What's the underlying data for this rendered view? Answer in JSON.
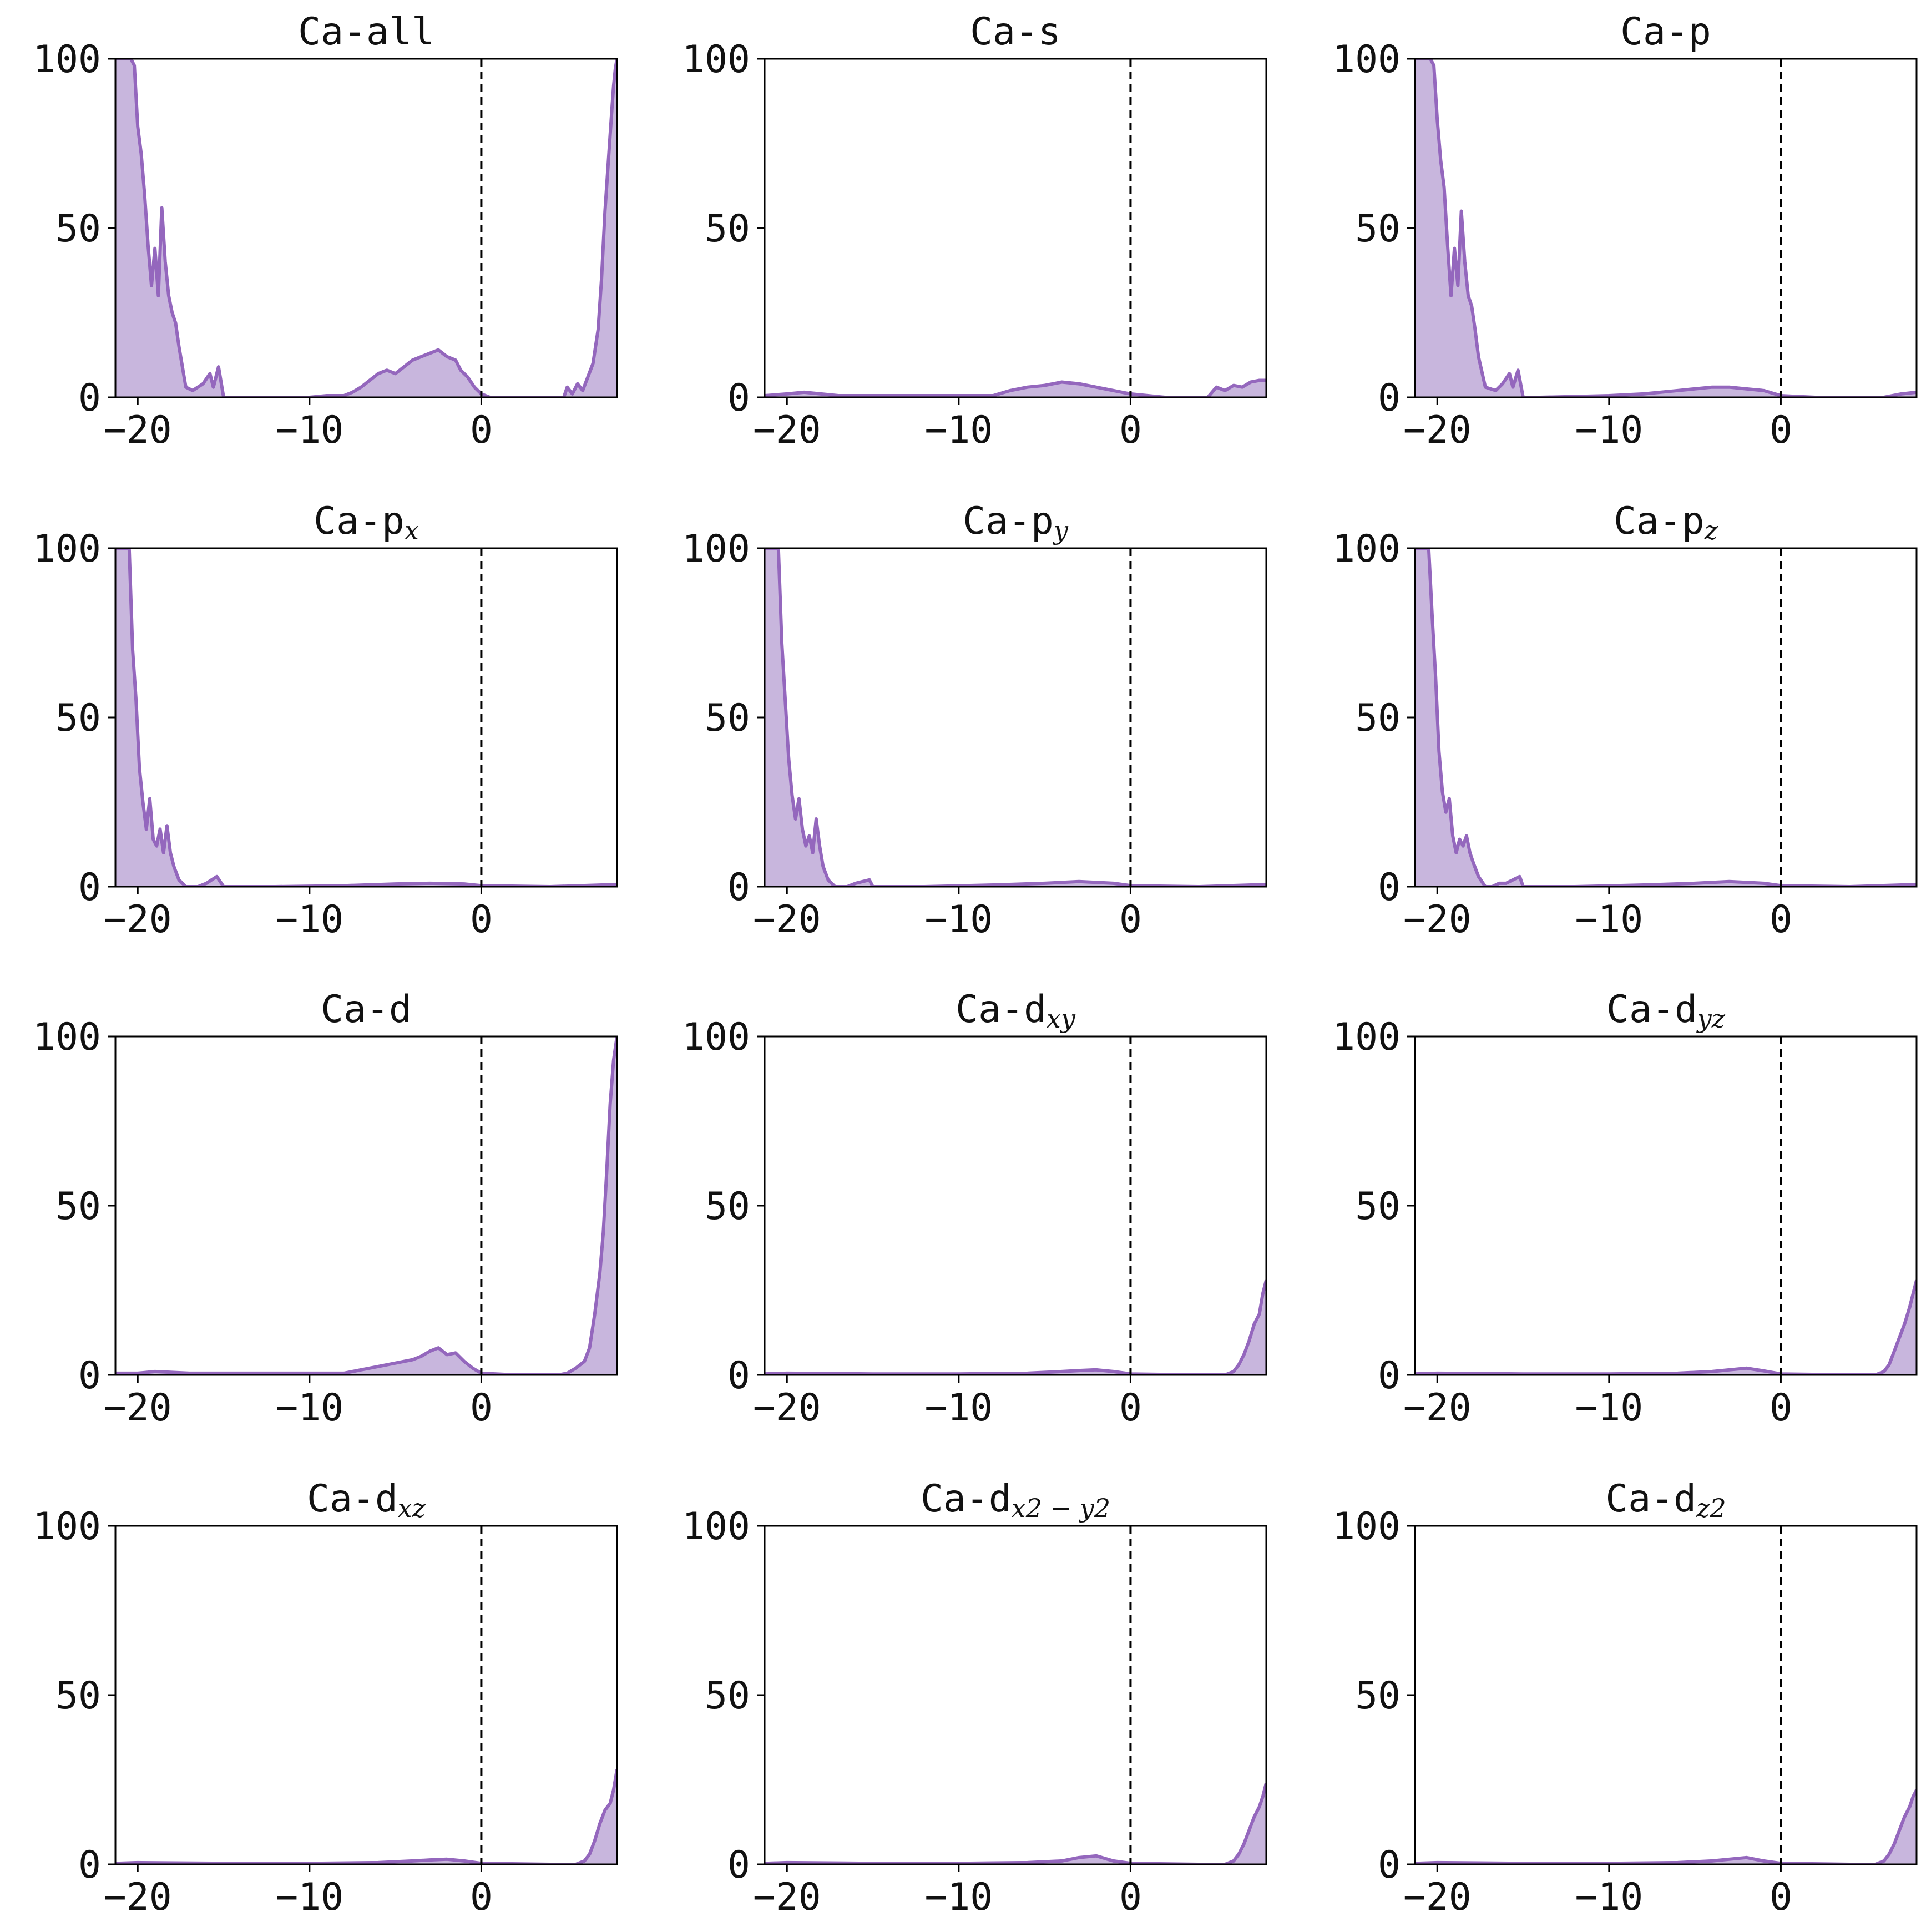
{
  "colors": {
    "line": "#9467bd",
    "fill": "#c8b6dd",
    "axis": "#000000",
    "fermi_line": "#000000"
  },
  "chart_data": [
    {
      "type": "area",
      "title": "Ca-all",
      "title_base": "Ca-all",
      "title_sub": "",
      "xlim": [
        -21.3,
        7.9
      ],
      "ylim": [
        0,
        100
      ],
      "xticks": [
        -20,
        -10,
        0
      ],
      "yticks": [
        0,
        50,
        100
      ],
      "vline": 0,
      "x": [
        -21.3,
        -20.8,
        -20.4,
        -20.2,
        -20.0,
        -19.8,
        -19.6,
        -19.4,
        -19.2,
        -19.0,
        -18.8,
        -18.6,
        -18.4,
        -18.2,
        -18.0,
        -17.8,
        -17.6,
        -17.2,
        -16.8,
        -16.2,
        -15.8,
        -15.6,
        -15.3,
        -15.0,
        -14.0,
        -10.0,
        -9.0,
        -8.0,
        -7.5,
        -7.0,
        -6.5,
        -6.0,
        -5.5,
        -5.0,
        -4.5,
        -4.0,
        -3.5,
        -3.0,
        -2.5,
        -2.0,
        -1.5,
        -1.2,
        -0.8,
        -0.4,
        0.0,
        0.5,
        2.0,
        4.0,
        4.8,
        5.0,
        5.3,
        5.6,
        5.9,
        6.2,
        6.5,
        6.8,
        7.0,
        7.2,
        7.4,
        7.6,
        7.7,
        7.8,
        7.9
      ],
      "y": [
        100,
        100,
        100,
        98,
        80,
        72,
        60,
        45,
        33,
        44,
        30,
        56,
        40,
        30,
        25,
        22,
        15,
        3,
        2,
        4,
        7,
        3,
        9,
        0,
        0,
        0,
        0.5,
        0.5,
        1.5,
        3,
        5,
        7,
        8,
        7,
        9,
        11,
        12,
        13,
        14,
        12,
        11,
        8,
        6,
        3,
        1,
        0,
        0,
        0,
        0,
        3,
        1,
        4,
        2,
        6,
        10,
        20,
        35,
        55,
        70,
        85,
        92,
        97,
        100
      ]
    },
    {
      "type": "area",
      "title": "Ca-s",
      "title_base": "Ca-s",
      "title_sub": "",
      "xlim": [
        -21.3,
        7.9
      ],
      "ylim": [
        0,
        100
      ],
      "xticks": [
        -20,
        -10,
        0
      ],
      "yticks": [
        0,
        50,
        100
      ],
      "vline": 0,
      "x": [
        -21.3,
        -20.0,
        -19.0,
        -17.0,
        -15.0,
        -10.0,
        -8.0,
        -7.0,
        -6.0,
        -5.0,
        -4.0,
        -3.0,
        -2.0,
        -1.0,
        0.0,
        2.0,
        4.5,
        5.0,
        5.5,
        6.0,
        6.5,
        7.0,
        7.5,
        7.9
      ],
      "y": [
        0.5,
        1,
        1.5,
        0.5,
        0.5,
        0.5,
        0.5,
        2,
        3,
        3.5,
        4.5,
        4,
        3,
        2,
        1,
        0,
        0,
        3,
        2,
        3.5,
        3,
        4.5,
        5,
        5
      ]
    },
    {
      "type": "area",
      "title": "Ca-p",
      "title_base": "Ca-p",
      "title_sub": "",
      "xlim": [
        -21.3,
        7.9
      ],
      "ylim": [
        0,
        100
      ],
      "xticks": [
        -20,
        -10,
        0
      ],
      "yticks": [
        0,
        50,
        100
      ],
      "vline": 0,
      "x": [
        -21.3,
        -20.8,
        -20.4,
        -20.2,
        -20.0,
        -19.8,
        -19.6,
        -19.4,
        -19.2,
        -19.0,
        -18.8,
        -18.6,
        -18.4,
        -18.2,
        -18.0,
        -17.8,
        -17.6,
        -17.2,
        -16.6,
        -16.2,
        -15.8,
        -15.6,
        -15.3,
        -15.0,
        -14.0,
        -10.0,
        -8.0,
        -6.0,
        -4.0,
        -3.0,
        -2.0,
        -1.0,
        0.0,
        2.0,
        6.0,
        7.0,
        7.9
      ],
      "y": [
        100,
        100,
        100,
        98,
        82,
        70,
        62,
        45,
        30,
        44,
        33,
        55,
        40,
        30,
        27,
        20,
        12,
        3,
        2,
        4,
        7,
        3,
        8,
        0,
        0,
        0.5,
        1,
        2,
        3,
        3,
        2.5,
        2,
        0.5,
        0,
        0,
        1,
        1.5
      ]
    },
    {
      "type": "area",
      "title": "Ca-px",
      "title_base": "Ca-p",
      "title_sub": "x",
      "xlim": [
        -21.3,
        7.9
      ],
      "ylim": [
        0,
        100
      ],
      "xticks": [
        -20,
        -10,
        0
      ],
      "yticks": [
        0,
        50,
        100
      ],
      "vline": 0,
      "x": [
        -21.3,
        -21.0,
        -20.7,
        -20.5,
        -20.3,
        -20.1,
        -19.9,
        -19.7,
        -19.5,
        -19.3,
        -19.1,
        -18.9,
        -18.7,
        -18.5,
        -18.3,
        -18.1,
        -17.9,
        -17.6,
        -17.2,
        -16.5,
        -16.0,
        -15.7,
        -15.4,
        -15.0,
        -12.0,
        -8.0,
        -5.0,
        -3.0,
        -1.0,
        0.0,
        4.0,
        7.0,
        7.9
      ],
      "y": [
        100,
        100,
        100,
        100,
        70,
        55,
        35,
        25,
        17,
        26,
        14,
        12,
        17,
        10,
        18,
        10,
        6,
        2,
        0,
        0,
        1,
        2,
        3,
        0,
        0,
        0.3,
        0.8,
        1,
        0.8,
        0.3,
        0,
        0.5,
        0.5
      ]
    },
    {
      "type": "area",
      "title": "Ca-py",
      "title_base": "Ca-p",
      "title_sub": "y",
      "xlim": [
        -21.3,
        7.9
      ],
      "ylim": [
        0,
        100
      ],
      "xticks": [
        -20,
        -10,
        0
      ],
      "yticks": [
        0,
        50,
        100
      ],
      "vline": 0,
      "x": [
        -21.3,
        -21.0,
        -20.7,
        -20.5,
        -20.3,
        -20.1,
        -19.9,
        -19.7,
        -19.5,
        -19.3,
        -19.1,
        -18.9,
        -18.7,
        -18.5,
        -18.3,
        -18.1,
        -17.9,
        -17.6,
        -17.2,
        -16.5,
        -16.0,
        -15.6,
        -15.2,
        -15.0,
        -12.0,
        -8.0,
        -5.0,
        -3.0,
        -1.0,
        0.0,
        4.0,
        7.0,
        7.9
      ],
      "y": [
        100,
        100,
        100,
        100,
        72,
        55,
        38,
        27,
        20,
        26,
        17,
        12,
        15,
        10,
        20,
        12,
        6,
        2,
        0,
        0,
        1,
        1.5,
        2,
        0,
        0,
        0.5,
        1,
        1.5,
        1,
        0.3,
        0,
        0.5,
        0.5
      ]
    },
    {
      "type": "area",
      "title": "Ca-pz",
      "title_base": "Ca-p",
      "title_sub": "z",
      "xlim": [
        -21.3,
        7.9
      ],
      "ylim": [
        0,
        100
      ],
      "xticks": [
        -20,
        -10,
        0
      ],
      "yticks": [
        0,
        50,
        100
      ],
      "vline": 0,
      "x": [
        -21.3,
        -21.0,
        -20.7,
        -20.5,
        -20.3,
        -20.1,
        -19.9,
        -19.7,
        -19.5,
        -19.3,
        -19.1,
        -18.9,
        -18.7,
        -18.5,
        -18.3,
        -18.1,
        -17.9,
        -17.6,
        -17.2,
        -16.8,
        -16.4,
        -16.0,
        -15.6,
        -15.2,
        -15.0,
        -12.0,
        -8.0,
        -5.0,
        -3.0,
        -1.0,
        0.0,
        4.0,
        7.0,
        7.9
      ],
      "y": [
        100,
        100,
        100,
        100,
        80,
        62,
        40,
        28,
        22,
        26,
        15,
        10,
        14,
        12,
        15,
        10,
        7,
        3,
        0,
        0,
        1,
        1,
        2,
        3,
        0,
        0,
        0.5,
        1,
        1.5,
        1,
        0.3,
        0,
        0.5,
        0.5
      ]
    },
    {
      "type": "area",
      "title": "Ca-d",
      "title_base": "Ca-d",
      "title_sub": "",
      "xlim": [
        -21.3,
        7.9
      ],
      "ylim": [
        0,
        100
      ],
      "xticks": [
        -20,
        -10,
        0
      ],
      "yticks": [
        0,
        50,
        100
      ],
      "vline": 0,
      "x": [
        -21.3,
        -20.0,
        -19.0,
        -17.0,
        -15.0,
        -10.0,
        -8.0,
        -7.0,
        -6.0,
        -5.0,
        -4.0,
        -3.5,
        -3.0,
        -2.5,
        -2.0,
        -1.5,
        -1.0,
        -0.5,
        0.0,
        2.0,
        4.5,
        5.0,
        5.5,
        6.0,
        6.3,
        6.6,
        6.9,
        7.1,
        7.3,
        7.5,
        7.7,
        7.9
      ],
      "y": [
        0.5,
        0.5,
        1,
        0.5,
        0.5,
        0.5,
        0.5,
        1.5,
        2.5,
        3.5,
        4.5,
        5.5,
        7,
        8,
        6,
        6.5,
        4,
        2,
        0.5,
        0,
        0,
        0.5,
        2,
        4,
        8,
        18,
        30,
        42,
        60,
        80,
        93,
        100
      ]
    },
    {
      "type": "area",
      "title": "Ca-dxy",
      "title_base": "Ca-d",
      "title_sub": "xy",
      "xlim": [
        -21.3,
        7.9
      ],
      "ylim": [
        0,
        100
      ],
      "xticks": [
        -20,
        -10,
        0
      ],
      "yticks": [
        0,
        50,
        100
      ],
      "vline": 0,
      "x": [
        -21.3,
        -20.0,
        -15.0,
        -10.0,
        -6.0,
        -4.0,
        -3.0,
        -2.0,
        -1.0,
        0.0,
        4.0,
        5.5,
        6.0,
        6.3,
        6.6,
        6.9,
        7.2,
        7.5,
        7.7,
        7.9
      ],
      "y": [
        0.3,
        0.5,
        0.3,
        0.3,
        0.5,
        1,
        1.3,
        1.5,
        1,
        0.3,
        0,
        0,
        1,
        3,
        6,
        10,
        15,
        18,
        24,
        28
      ]
    },
    {
      "type": "area",
      "title": "Ca-dyz",
      "title_base": "Ca-d",
      "title_sub": "yz",
      "xlim": [
        -21.3,
        7.9
      ],
      "ylim": [
        0,
        100
      ],
      "xticks": [
        -20,
        -10,
        0
      ],
      "yticks": [
        0,
        50,
        100
      ],
      "vline": 0,
      "x": [
        -21.3,
        -20.0,
        -15.0,
        -10.0,
        -6.0,
        -4.0,
        -3.0,
        -2.0,
        -1.0,
        0.0,
        4.0,
        5.5,
        6.0,
        6.3,
        6.6,
        6.9,
        7.2,
        7.5,
        7.7,
        7.9
      ],
      "y": [
        0.3,
        0.5,
        0.3,
        0.3,
        0.5,
        1,
        1.5,
        2,
        1.2,
        0.3,
        0,
        0,
        1,
        3,
        7,
        11,
        15,
        20,
        24,
        28
      ]
    },
    {
      "type": "area",
      "title": "Ca-dxz",
      "title_base": "Ca-d",
      "title_sub": "xz",
      "xlim": [
        -21.3,
        7.9
      ],
      "ylim": [
        0,
        100
      ],
      "xticks": [
        -20,
        -10,
        0
      ],
      "yticks": [
        0,
        50,
        100
      ],
      "vline": 0,
      "x": [
        -21.3,
        -20.0,
        -15.0,
        -10.0,
        -6.0,
        -4.0,
        -3.0,
        -2.0,
        -1.0,
        0.0,
        4.0,
        5.5,
        6.0,
        6.3,
        6.6,
        6.9,
        7.2,
        7.5,
        7.7,
        7.9
      ],
      "y": [
        0.3,
        0.5,
        0.3,
        0.3,
        0.5,
        1,
        1.3,
        1.5,
        1,
        0.3,
        0,
        0,
        1,
        3,
        7,
        12,
        16,
        18,
        22,
        28
      ]
    },
    {
      "type": "area",
      "title": "Ca-dx2-y2",
      "title_base": "Ca-d",
      "title_sub": "x2 − y2",
      "xlim": [
        -21.3,
        7.9
      ],
      "ylim": [
        0,
        100
      ],
      "xticks": [
        -20,
        -10,
        0
      ],
      "yticks": [
        0,
        50,
        100
      ],
      "vline": 0,
      "x": [
        -21.3,
        -20.0,
        -15.0,
        -10.0,
        -6.0,
        -4.0,
        -3.0,
        -2.0,
        -1.0,
        0.0,
        4.0,
        5.5,
        6.0,
        6.3,
        6.6,
        6.9,
        7.2,
        7.5,
        7.7,
        7.9
      ],
      "y": [
        0.3,
        0.5,
        0.3,
        0.3,
        0.5,
        1,
        2,
        2.5,
        1,
        0.3,
        0,
        0,
        1,
        3,
        6,
        10,
        14,
        17,
        20,
        24
      ]
    },
    {
      "type": "area",
      "title": "Ca-dz2",
      "title_base": "Ca-d",
      "title_sub": "z2",
      "xlim": [
        -21.3,
        7.9
      ],
      "ylim": [
        0,
        100
      ],
      "xticks": [
        -20,
        -10,
        0
      ],
      "yticks": [
        0,
        50,
        100
      ],
      "vline": 0,
      "x": [
        -21.3,
        -20.0,
        -15.0,
        -10.0,
        -6.0,
        -4.0,
        -3.0,
        -2.0,
        -1.0,
        0.0,
        4.0,
        5.5,
        6.0,
        6.3,
        6.6,
        6.9,
        7.2,
        7.5,
        7.7,
        7.9
      ],
      "y": [
        0.3,
        0.5,
        0.3,
        0.3,
        0.5,
        1,
        1.5,
        2,
        1,
        0.3,
        0,
        0,
        1,
        3,
        6,
        10,
        14,
        17,
        20,
        22
      ]
    }
  ]
}
